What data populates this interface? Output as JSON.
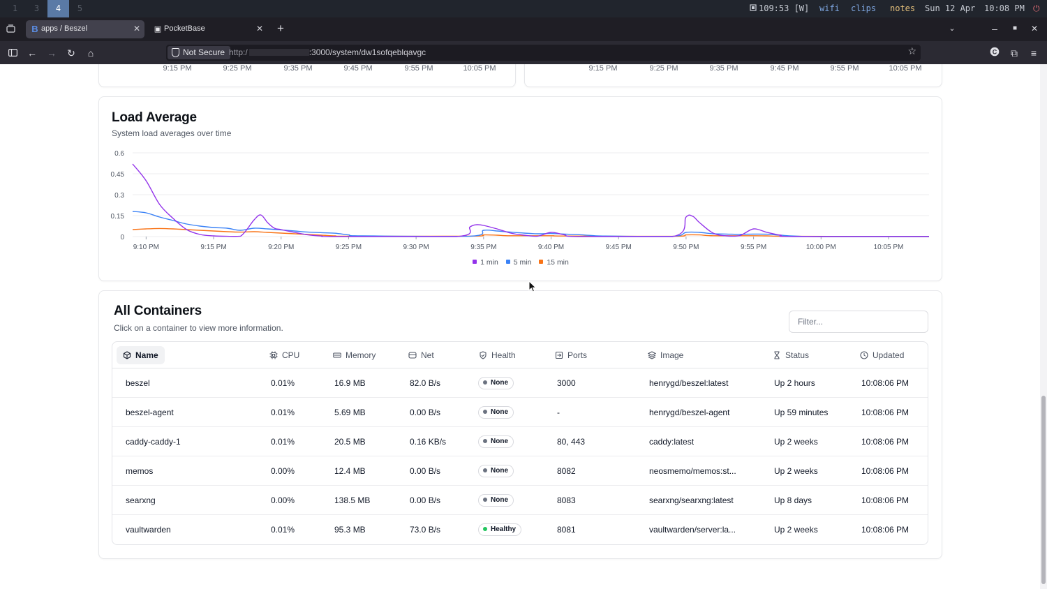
{
  "system_bar": {
    "workspaces": [
      "1",
      "3",
      "4",
      "5"
    ],
    "active_workspace": "4",
    "battery": "109:53 [W]",
    "wifi": "wifi",
    "clips": "clips",
    "notes": "notes",
    "date": "Sun 12 Apr",
    "time": "10:08 PM",
    "power_icon": "power-icon"
  },
  "browser": {
    "tabs": [
      {
        "title": "apps / Beszel",
        "icon": "B",
        "active": true
      },
      {
        "title": "PocketBase",
        "icon": "P",
        "active": false
      }
    ],
    "new_tab": "+",
    "not_secure": "Not Secure",
    "url_prefix": "http:/",
    "url_path": ":3000/system/dw1sofqeblqavgc"
  },
  "top_cards": {
    "left_ticks": [
      "9:15 PM",
      "9:25 PM",
      "9:35 PM",
      "9:45 PM",
      "9:55 PM",
      "10:05 PM"
    ],
    "right_ticks": [
      "9:15 PM",
      "9:25 PM",
      "9:35 PM",
      "9:45 PM",
      "9:55 PM",
      "10:05 PM"
    ]
  },
  "load_card": {
    "title": "Load Average",
    "subtitle": "System load averages over time"
  },
  "chart_data": {
    "type": "line",
    "title": "Load Average",
    "subtitle": "System load averages over time",
    "x_ticks": [
      "9:10 PM",
      "9:15 PM",
      "9:20 PM",
      "9:25 PM",
      "9:30 PM",
      "9:35 PM",
      "9:40 PM",
      "9:45 PM",
      "9:50 PM",
      "9:55 PM",
      "10:00 PM",
      "10:05 PM"
    ],
    "x_unit": "minutes since 9:10 PM axis tick",
    "xlim": [
      "9:10 PM",
      "10:08 PM"
    ],
    "y_ticks": [
      "0.6",
      "0.45",
      "0.3",
      "0.15",
      "0"
    ],
    "ylim": [
      0,
      0.6
    ],
    "grid": true,
    "legend_position": "bottom-center",
    "series": [
      {
        "name": "1 min",
        "color": "#9333ea",
        "points": [
          [
            "9:09 PM",
            0.52
          ],
          [
            "9:10 PM",
            0.4
          ],
          [
            "9:11 PM",
            0.23
          ],
          [
            "9:12 PM",
            0.13
          ],
          [
            "9:13 PM",
            0.05
          ],
          [
            "9:14 PM",
            0.015
          ],
          [
            "9:15 PM",
            0.005
          ],
          [
            "9:16 PM",
            0.002
          ],
          [
            "9:17 PM",
            0.003
          ],
          [
            "9:18 PM",
            0.12
          ],
          [
            "9:18:30 PM",
            0.155
          ],
          [
            "9:19 PM",
            0.1
          ],
          [
            "9:19:30 PM",
            0.06
          ],
          [
            "9:20 PM",
            0.05
          ],
          [
            "9:21 PM",
            0.03
          ],
          [
            "9:22 PM",
            0.012
          ],
          [
            "9:23 PM",
            0.004
          ],
          [
            "9:24 PM",
            0.0
          ],
          [
            "9:33 PM",
            0.0
          ],
          [
            "9:34 PM",
            0.07
          ],
          [
            "9:34:30 PM",
            0.085
          ],
          [
            "9:35 PM",
            0.08
          ],
          [
            "9:36 PM",
            0.055
          ],
          [
            "9:37 PM",
            0.025
          ],
          [
            "9:38 PM",
            0.01
          ],
          [
            "9:39 PM",
            0.003
          ],
          [
            "9:40 PM",
            0.03
          ],
          [
            "9:41 PM",
            0.012
          ],
          [
            "9:42 PM",
            0.0
          ],
          [
            "9:49 PM",
            0.0
          ],
          [
            "9:50 PM",
            0.14
          ],
          [
            "9:50:30 PM",
            0.145
          ],
          [
            "9:51 PM",
            0.1
          ],
          [
            "9:52 PM",
            0.025
          ],
          [
            "9:53 PM",
            0.005
          ],
          [
            "9:54 PM",
            0.008
          ],
          [
            "9:55 PM",
            0.055
          ],
          [
            "9:56 PM",
            0.03
          ],
          [
            "9:57 PM",
            0.01
          ],
          [
            "9:58 PM",
            0.0
          ],
          [
            "10:08 PM",
            0.0
          ]
        ]
      },
      {
        "name": "5 min",
        "color": "#3b82f6",
        "points": [
          [
            "9:09 PM",
            0.18
          ],
          [
            "9:10 PM",
            0.17
          ],
          [
            "9:11 PM",
            0.14
          ],
          [
            "9:12 PM",
            0.115
          ],
          [
            "9:13 PM",
            0.09
          ],
          [
            "9:14 PM",
            0.075
          ],
          [
            "9:15 PM",
            0.065
          ],
          [
            "9:16 PM",
            0.06
          ],
          [
            "9:17 PM",
            0.045
          ],
          [
            "9:18 PM",
            0.06
          ],
          [
            "9:19 PM",
            0.055
          ],
          [
            "9:20 PM",
            0.048
          ],
          [
            "9:21 PM",
            0.04
          ],
          [
            "9:22 PM",
            0.032
          ],
          [
            "9:23 PM",
            0.028
          ],
          [
            "9:24 PM",
            0.024
          ],
          [
            "9:25 PM",
            0.012
          ],
          [
            "9:26 PM",
            0.005
          ],
          [
            "9:34 PM",
            0.003
          ],
          [
            "9:35 PM",
            0.045
          ],
          [
            "9:36 PM",
            0.04
          ],
          [
            "9:37 PM",
            0.032
          ],
          [
            "9:38 PM",
            0.025
          ],
          [
            "9:39 PM",
            0.02
          ],
          [
            "9:40 PM",
            0.022
          ],
          [
            "9:41 PM",
            0.018
          ],
          [
            "9:42 PM",
            0.014
          ],
          [
            "9:43 PM",
            0.008
          ],
          [
            "9:44 PM",
            0.004
          ],
          [
            "9:49 PM",
            0.002
          ],
          [
            "9:50 PM",
            0.03
          ],
          [
            "9:51 PM",
            0.03
          ],
          [
            "9:52 PM",
            0.02
          ],
          [
            "9:53 PM",
            0.018
          ],
          [
            "9:54 PM",
            0.016
          ],
          [
            "9:55 PM",
            0.018
          ],
          [
            "9:56 PM",
            0.017
          ],
          [
            "9:57 PM",
            0.01
          ],
          [
            "9:58 PM",
            0.004
          ],
          [
            "10:00 PM",
            0.0
          ],
          [
            "10:08 PM",
            0.0
          ]
        ]
      },
      {
        "name": "15 min",
        "color": "#f97316",
        "points": [
          [
            "9:09 PM",
            0.05
          ],
          [
            "9:10 PM",
            0.055
          ],
          [
            "9:11 PM",
            0.058
          ],
          [
            "9:12 PM",
            0.055
          ],
          [
            "9:13 PM",
            0.05
          ],
          [
            "9:14 PM",
            0.045
          ],
          [
            "9:15 PM",
            0.04
          ],
          [
            "9:16 PM",
            0.035
          ],
          [
            "9:17 PM",
            0.032
          ],
          [
            "9:18 PM",
            0.035
          ],
          [
            "9:19 PM",
            0.03
          ],
          [
            "9:20 PM",
            0.025
          ],
          [
            "9:21 PM",
            0.02
          ],
          [
            "9:22 PM",
            0.015
          ],
          [
            "9:23 PM",
            0.01
          ],
          [
            "9:24 PM",
            0.005
          ],
          [
            "9:25 PM",
            0.003
          ],
          [
            "9:34 PM",
            0.003
          ],
          [
            "9:35 PM",
            0.012
          ],
          [
            "9:36 PM",
            0.01
          ],
          [
            "9:37 PM",
            0.006
          ],
          [
            "9:40 PM",
            0.006
          ],
          [
            "9:41 PM",
            0.004
          ],
          [
            "9:49 PM",
            0.002
          ],
          [
            "9:50 PM",
            0.012
          ],
          [
            "9:51 PM",
            0.012
          ],
          [
            "9:52 PM",
            0.006
          ],
          [
            "9:55 PM",
            0.006
          ],
          [
            "9:56 PM",
            0.005
          ],
          [
            "9:58 PM",
            0.002
          ],
          [
            "10:08 PM",
            0.0
          ]
        ]
      }
    ]
  },
  "containers": {
    "title": "All Containers",
    "subtitle": "Click on a container to view more information.",
    "filter_placeholder": "Filter...",
    "columns": [
      {
        "key": "name",
        "label": "Name",
        "icon": "container-icon"
      },
      {
        "key": "cpu",
        "label": "CPU",
        "icon": "cpu-icon"
      },
      {
        "key": "memory",
        "label": "Memory",
        "icon": "memory-icon"
      },
      {
        "key": "net",
        "label": "Net",
        "icon": "network-icon"
      },
      {
        "key": "health",
        "label": "Health",
        "icon": "shield-icon"
      },
      {
        "key": "ports",
        "label": "Ports",
        "icon": "port-icon"
      },
      {
        "key": "image",
        "label": "Image",
        "icon": "layers-icon"
      },
      {
        "key": "status",
        "label": "Status",
        "icon": "hourglass-icon"
      },
      {
        "key": "updated",
        "label": "Updated",
        "icon": "clock-icon"
      }
    ],
    "rows": [
      {
        "name": "beszel",
        "cpu": "0.01%",
        "memory": "16.9 MB",
        "net": "82.0 B/s",
        "health": "None",
        "health_color": "#6b7280",
        "ports": "3000",
        "image": "henrygd/beszel:latest",
        "status": "Up 2 hours",
        "updated": "10:08:06 PM"
      },
      {
        "name": "beszel-agent",
        "cpu": "0.01%",
        "memory": "5.69 MB",
        "net": "0.00 B/s",
        "health": "None",
        "health_color": "#6b7280",
        "ports": "-",
        "image": "henrygd/beszel-agent",
        "status": "Up 59 minutes",
        "updated": "10:08:06 PM"
      },
      {
        "name": "caddy-caddy-1",
        "cpu": "0.01%",
        "memory": "20.5 MB",
        "net": "0.16 KB/s",
        "health": "None",
        "health_color": "#6b7280",
        "ports": "80, 443",
        "image": "caddy:latest",
        "status": "Up 2 weeks",
        "updated": "10:08:06 PM"
      },
      {
        "name": "memos",
        "cpu": "0.00%",
        "memory": "12.4 MB",
        "net": "0.00 B/s",
        "health": "None",
        "health_color": "#6b7280",
        "ports": "8082",
        "image": "neosmemo/memos:st...",
        "status": "Up 2 weeks",
        "updated": "10:08:06 PM"
      },
      {
        "name": "searxng",
        "cpu": "0.00%",
        "memory": "138.5 MB",
        "net": "0.00 B/s",
        "health": "None",
        "health_color": "#6b7280",
        "ports": "8083",
        "image": "searxng/searxng:latest",
        "status": "Up 8 days",
        "updated": "10:08:06 PM"
      },
      {
        "name": "vaultwarden",
        "cpu": "0.01%",
        "memory": "95.3 MB",
        "net": "73.0 B/s",
        "health": "Healthy",
        "health_color": "#22c55e",
        "ports": "8081",
        "image": "vaultwarden/server:la...",
        "status": "Up 2 weeks",
        "updated": "10:08:06 PM"
      }
    ]
  }
}
